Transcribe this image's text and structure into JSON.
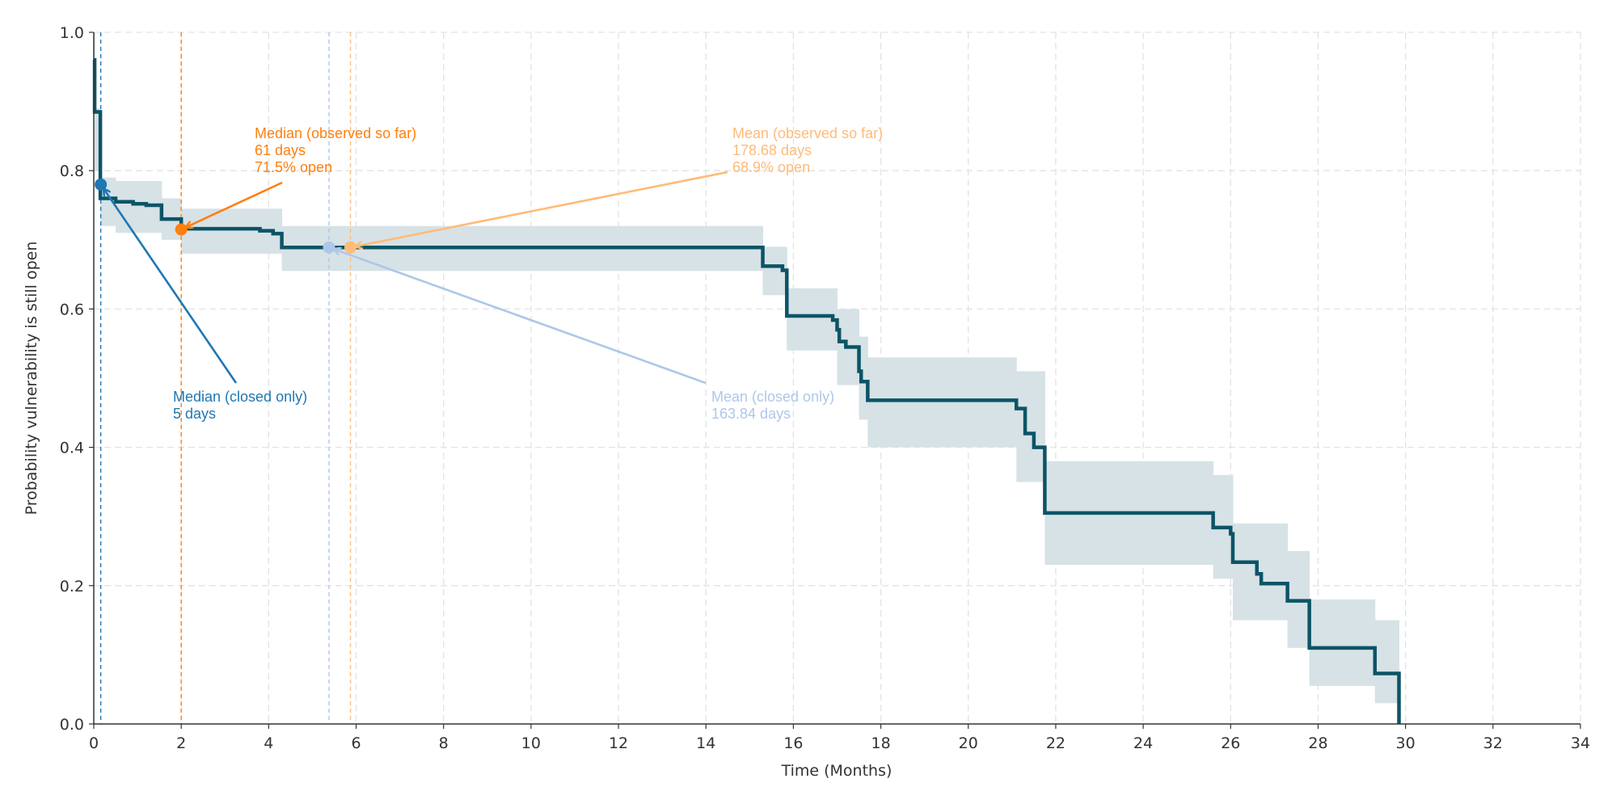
{
  "chart_data": {
    "type": "line",
    "xlabel": "Time (Months)",
    "ylabel": "Probability vulnerability is still open",
    "xlim": [
      0,
      34
    ],
    "ylim": [
      0,
      1.0
    ],
    "xticks": [
      "0",
      "2",
      "4",
      "6",
      "8",
      "10",
      "12",
      "14",
      "16",
      "18",
      "20",
      "22",
      "24",
      "26",
      "28",
      "30",
      "32",
      "34"
    ],
    "yticks": [
      "0.0",
      "0.2",
      "0.4",
      "0.6",
      "0.8",
      "1.0"
    ],
    "grid": true,
    "colors": {
      "curve": "#0b5466",
      "band": "#d6e2e6",
      "median_closed": "#1f77b4",
      "median_observed": "#ff7f0e",
      "mean_closed": "#aec7e8",
      "mean_observed": "#ffbb78"
    },
    "survival_steps": [
      [
        0,
        0.96
      ],
      [
        0.02,
        0.885
      ],
      [
        0.15,
        0.76
      ],
      [
        0.5,
        0.755
      ],
      [
        0.9,
        0.752
      ],
      [
        1.2,
        0.75
      ],
      [
        1.55,
        0.73
      ],
      [
        2.0,
        0.716
      ],
      [
        3.8,
        0.713
      ],
      [
        4.1,
        0.709
      ],
      [
        4.3,
        0.689
      ],
      [
        15.3,
        0.662
      ],
      [
        15.75,
        0.656
      ],
      [
        15.85,
        0.59
      ],
      [
        16.9,
        0.584
      ],
      [
        17.0,
        0.57
      ],
      [
        17.05,
        0.553
      ],
      [
        17.2,
        0.545
      ],
      [
        17.5,
        0.51
      ],
      [
        17.55,
        0.495
      ],
      [
        17.7,
        0.468
      ],
      [
        21.1,
        0.456
      ],
      [
        21.3,
        0.42
      ],
      [
        21.5,
        0.4
      ],
      [
        21.75,
        0.305
      ],
      [
        25.6,
        0.284
      ],
      [
        26.0,
        0.275
      ],
      [
        26.05,
        0.234
      ],
      [
        26.6,
        0.217
      ],
      [
        26.7,
        0.203
      ],
      [
        27.3,
        0.178
      ],
      [
        27.8,
        0.11
      ],
      [
        29.3,
        0.073
      ],
      [
        29.85,
        0.0
      ]
    ],
    "confidence_band": [
      [
        0,
        0.02,
        0.9,
        1.0
      ],
      [
        0.02,
        0.15,
        0.8,
        0.89
      ],
      [
        0.15,
        0.5,
        0.72,
        0.79
      ],
      [
        0.5,
        1.55,
        0.71,
        0.785
      ],
      [
        1.55,
        2.0,
        0.7,
        0.76
      ],
      [
        2.0,
        4.3,
        0.68,
        0.745
      ],
      [
        4.3,
        15.3,
        0.655,
        0.72
      ],
      [
        15.3,
        15.85,
        0.62,
        0.69
      ],
      [
        15.85,
        17.0,
        0.54,
        0.63
      ],
      [
        17.0,
        17.5,
        0.49,
        0.6
      ],
      [
        17.5,
        17.7,
        0.44,
        0.56
      ],
      [
        17.7,
        21.1,
        0.4,
        0.53
      ],
      [
        21.1,
        21.75,
        0.35,
        0.51
      ],
      [
        21.75,
        25.6,
        0.23,
        0.38
      ],
      [
        25.6,
        26.05,
        0.21,
        0.36
      ],
      [
        26.05,
        27.3,
        0.15,
        0.29
      ],
      [
        27.3,
        27.8,
        0.11,
        0.25
      ],
      [
        27.8,
        29.3,
        0.055,
        0.18
      ],
      [
        29.3,
        29.85,
        0.03,
        0.15
      ]
    ],
    "annotations": [
      {
        "key": "median_closed",
        "x": 0.16,
        "y": 0.78,
        "lines": [
          "Median (closed only)",
          "5 days"
        ]
      },
      {
        "key": "median_observed",
        "x": 2.0,
        "y": 0.715,
        "lines": [
          "Median (observed so far)",
          "61 days",
          "71.5% open"
        ]
      },
      {
        "key": "mean_closed",
        "x": 5.38,
        "y": 0.689,
        "lines": [
          "Mean (closed only)",
          "163.84 days"
        ]
      },
      {
        "key": "mean_observed",
        "x": 5.87,
        "y": 0.689,
        "lines": [
          "Mean (observed so far)",
          "178.68 days",
          "68.9% open"
        ]
      }
    ]
  }
}
